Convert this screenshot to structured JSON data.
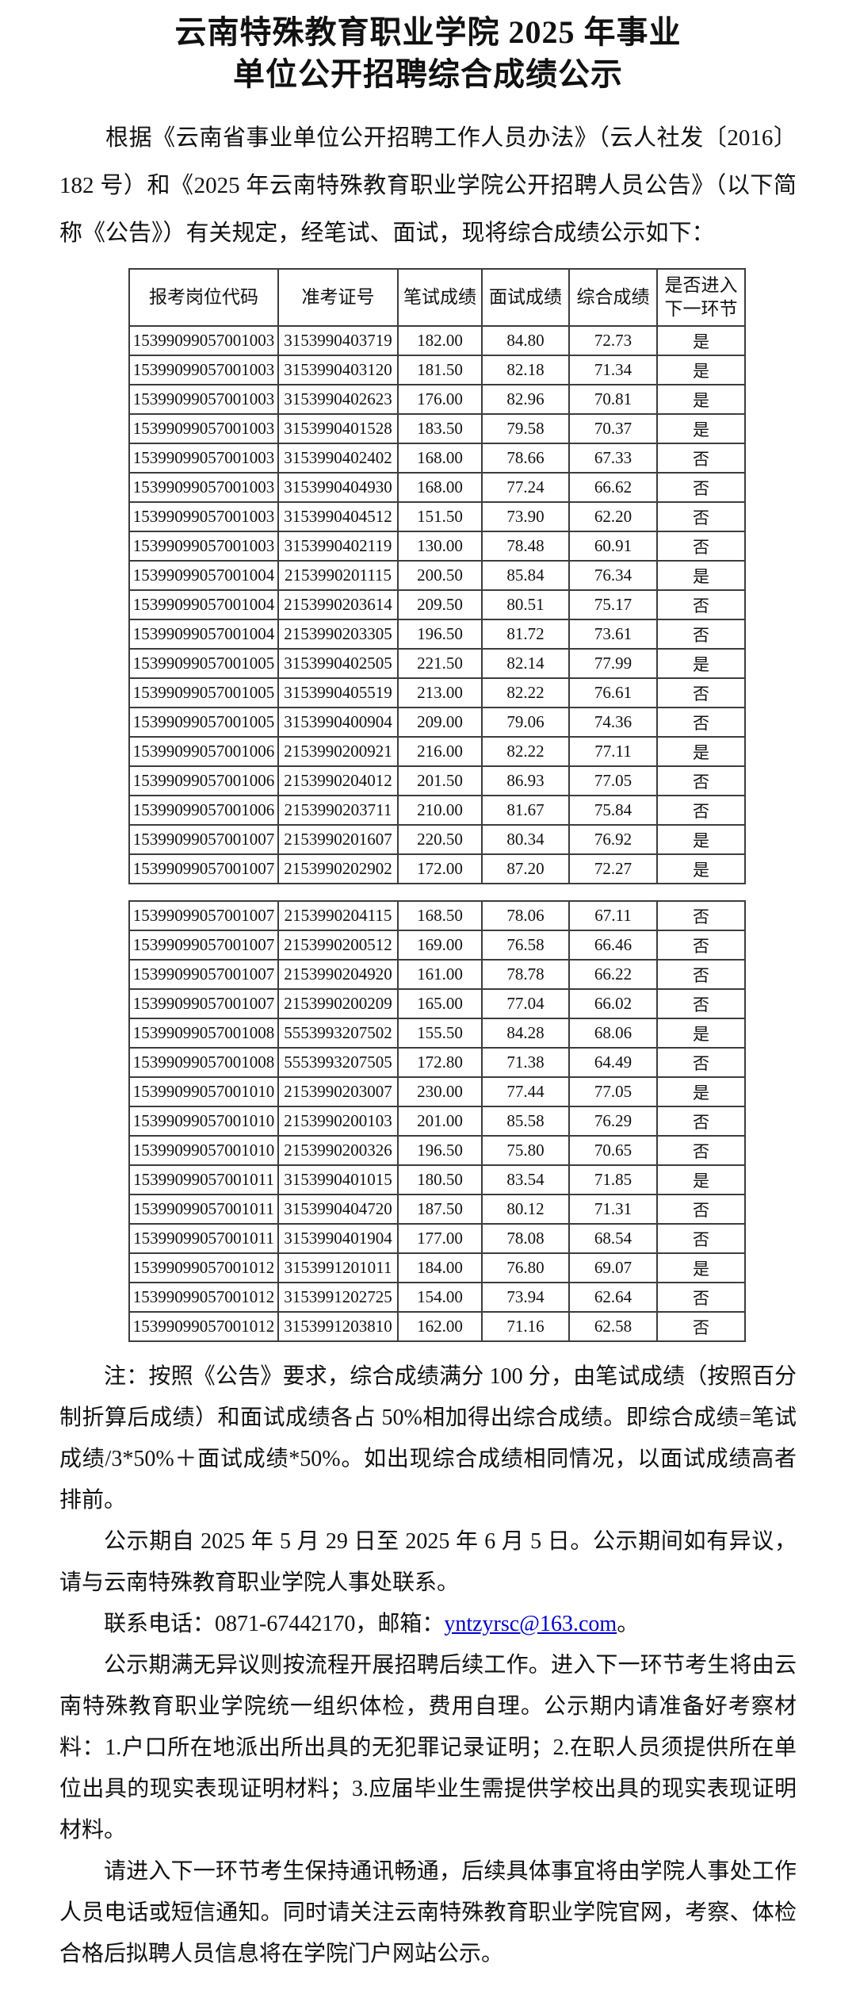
{
  "document": {
    "title_line1": "云南特殊教育职业学院 2025 年事业",
    "title_line2": "单位公开招聘综合成绩公示",
    "intro": "根据《云南省事业单位公开招聘工作人员办法》（云人社发〔2016〕182 号）和《2025 年云南特殊教育职业学院公开招聘人员公告》（以下简称《公告》）有关规定，经笔试、面试，现将综合成绩公示如下：",
    "table": {
      "headers": [
        "报考岗位代码",
        "准考证号",
        "笔试成绩",
        "面试成绩",
        "综合成绩"
      ],
      "header_next_round_line1": "是否进入",
      "header_next_round_line2": "下一环节",
      "rows_part1": [
        [
          "15399099057001003",
          "3153990403719",
          "182.00",
          "84.80",
          "72.73",
          "是"
        ],
        [
          "15399099057001003",
          "3153990403120",
          "181.50",
          "82.18",
          "71.34",
          "是"
        ],
        [
          "15399099057001003",
          "3153990402623",
          "176.00",
          "82.96",
          "70.81",
          "是"
        ],
        [
          "15399099057001003",
          "3153990401528",
          "183.50",
          "79.58",
          "70.37",
          "是"
        ],
        [
          "15399099057001003",
          "3153990402402",
          "168.00",
          "78.66",
          "67.33",
          "否"
        ],
        [
          "15399099057001003",
          "3153990404930",
          "168.00",
          "77.24",
          "66.62",
          "否"
        ],
        [
          "15399099057001003",
          "3153990404512",
          "151.50",
          "73.90",
          "62.20",
          "否"
        ],
        [
          "15399099057001003",
          "3153990402119",
          "130.00",
          "78.48",
          "60.91",
          "否"
        ],
        [
          "15399099057001004",
          "2153990201115",
          "200.50",
          "85.84",
          "76.34",
          "是"
        ],
        [
          "15399099057001004",
          "2153990203614",
          "209.50",
          "80.51",
          "75.17",
          "否"
        ],
        [
          "15399099057001004",
          "2153990203305",
          "196.50",
          "81.72",
          "73.61",
          "否"
        ],
        [
          "15399099057001005",
          "3153990402505",
          "221.50",
          "82.14",
          "77.99",
          "是"
        ],
        [
          "15399099057001005",
          "3153990405519",
          "213.00",
          "82.22",
          "76.61",
          "否"
        ],
        [
          "15399099057001005",
          "3153990400904",
          "209.00",
          "79.06",
          "74.36",
          "否"
        ],
        [
          "15399099057001006",
          "2153990200921",
          "216.00",
          "82.22",
          "77.11",
          "是"
        ],
        [
          "15399099057001006",
          "2153990204012",
          "201.50",
          "86.93",
          "77.05",
          "否"
        ],
        [
          "15399099057001006",
          "2153990203711",
          "210.00",
          "81.67",
          "75.84",
          "否"
        ],
        [
          "15399099057001007",
          "2153990201607",
          "220.50",
          "80.34",
          "76.92",
          "是"
        ],
        [
          "15399099057001007",
          "2153990202902",
          "172.00",
          "87.20",
          "72.27",
          "是"
        ]
      ],
      "rows_part2": [
        [
          "15399099057001007",
          "2153990204115",
          "168.50",
          "78.06",
          "67.11",
          "否"
        ],
        [
          "15399099057001007",
          "2153990200512",
          "169.00",
          "76.58",
          "66.46",
          "否"
        ],
        [
          "15399099057001007",
          "2153990204920",
          "161.00",
          "78.78",
          "66.22",
          "否"
        ],
        [
          "15399099057001007",
          "2153990200209",
          "165.00",
          "77.04",
          "66.02",
          "否"
        ],
        [
          "15399099057001008",
          "5553993207502",
          "155.50",
          "84.28",
          "68.06",
          "是"
        ],
        [
          "15399099057001008",
          "5553993207505",
          "172.80",
          "71.38",
          "64.49",
          "否"
        ],
        [
          "15399099057001010",
          "2153990203007",
          "230.00",
          "77.44",
          "77.05",
          "是"
        ],
        [
          "15399099057001010",
          "2153990200103",
          "201.00",
          "85.58",
          "76.29",
          "否"
        ],
        [
          "15399099057001010",
          "2153990200326",
          "196.50",
          "75.80",
          "70.65",
          "否"
        ],
        [
          "15399099057001011",
          "3153990401015",
          "180.50",
          "83.54",
          "71.85",
          "是"
        ],
        [
          "15399099057001011",
          "3153990404720",
          "187.50",
          "80.12",
          "71.31",
          "否"
        ],
        [
          "15399099057001011",
          "3153990401904",
          "177.00",
          "78.08",
          "68.54",
          "否"
        ],
        [
          "15399099057001012",
          "3153991201011",
          "184.00",
          "76.80",
          "69.07",
          "是"
        ],
        [
          "15399099057001012",
          "3153991202725",
          "154.00",
          "73.94",
          "62.64",
          "否"
        ],
        [
          "15399099057001012",
          "3153991203810",
          "162.00",
          "71.16",
          "62.58",
          "否"
        ]
      ]
    },
    "notes": {
      "note1": "注：按照《公告》要求，综合成绩满分 100 分，由笔试成绩（按照百分制折算后成绩）和面试成绩各占 50%相加得出综合成绩。即综合成绩=笔试成绩/3*50%＋面试成绩*50%。如出现综合成绩相同情况，以面试成绩高者排前。",
      "note2": "公示期自 2025 年 5 月 29 日至 2025 年 6 月 5 日。公示期间如有异议，请与云南特殊教育职业学院人事处联系。",
      "contact_prefix": "联系电话：0871-67442170，邮箱：",
      "contact_email": "yntzyrsc@163.com",
      "contact_suffix": "。",
      "note3": "公示期满无异议则按流程开展招聘后续工作。进入下一环节考生将由云南特殊教育职业学院统一组织体检，费用自理。公示期内请准备好考察材料：1.户口所在地派出所出具的无犯罪记录证明；2.在职人员须提供所在单位出具的现实表现证明材料；3.应届毕业生需提供学校出具的现实表现证明材料。",
      "note4": "请进入下一环节考生保持通讯畅通，后续具体事宜将由学院人事处工作人员电话或短信通知。同时请关注云南特殊教育职业学院官网，考察、体检合格后拟聘人员信息将在学院门户网站公示。"
    },
    "colors": {
      "email_link": "#0000cc",
      "text": "#111111",
      "table_border": "#3d3d3d"
    }
  }
}
